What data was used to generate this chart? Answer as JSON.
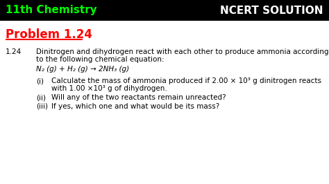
{
  "header_bg": "#000000",
  "header_left_text": "11th Chemistry",
  "header_left_color": "#00ff00",
  "header_right_text": "NCERT SOLUTION",
  "header_right_color": "#ffffff",
  "body_bg": "#ffffff",
  "problem_label": "Problem 1.24",
  "problem_color": "#ff0000",
  "number_label": "1.24",
  "main_text_line1": "Dinitrogen and dihydrogen react with each other to produce ammonia according",
  "main_text_line2": "to the following chemical equation:",
  "equation": "N₂ (g) + H₂ (g) → 2NH₃ (g)",
  "sub_i_label": "(i)",
  "sub_i_text1": "Calculate the mass of ammonia produced if 2.00 × 10³ g dinitrogen reacts",
  "sub_i_text2": "with 1.00 ×10³ g of dihydrogen.",
  "sub_ii_label": "(ii)",
  "sub_ii_text": "Will any of the two reactants remain unreacted?",
  "sub_iii_label": "(iii)",
  "sub_iii_text": "If yes, which one and what would be its mass?",
  "font_size_header": 11,
  "font_size_problem": 12,
  "font_size_body": 7.5
}
